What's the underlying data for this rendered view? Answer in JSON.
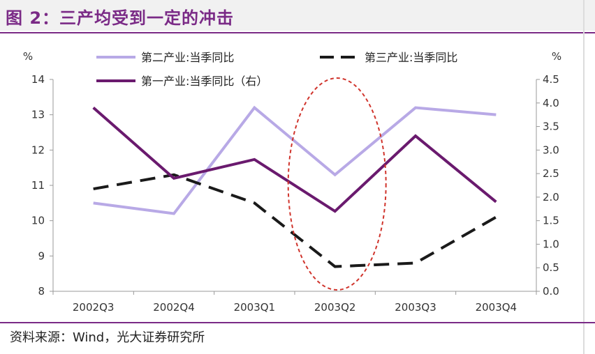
{
  "header": {
    "title": "图 2：三产均受到一定的冲击"
  },
  "footer": {
    "source": "资料来源：Wind，光大证券研究所"
  },
  "chart_data": {
    "type": "line",
    "categories": [
      "2002Q3",
      "2002Q4",
      "2003Q1",
      "2003Q2",
      "2003Q3",
      "2003Q4"
    ],
    "y_left": {
      "label": "%",
      "ylim": [
        8,
        14
      ],
      "ticks": [
        8,
        9,
        10,
        11,
        12,
        13,
        14
      ]
    },
    "y_right": {
      "label": "%",
      "ylim": [
        0,
        4.5
      ],
      "ticks": [
        "0.0",
        "0.5",
        "1.0",
        "1.5",
        "2.0",
        "2.5",
        "3.0",
        "3.5",
        "4.0",
        "4.5"
      ]
    },
    "grid": false,
    "legend": "top",
    "series": [
      {
        "name": "第二产业:当季同比",
        "axis": "left",
        "color": "#b8a9e6",
        "style": "solid",
        "values": [
          10.5,
          10.2,
          13.2,
          11.3,
          13.2,
          13.0
        ]
      },
      {
        "name": "第三产业:当季同比",
        "axis": "left",
        "color": "#1a1a1a",
        "style": "dashed",
        "values": [
          10.9,
          11.3,
          10.5,
          8.7,
          8.8,
          10.1
        ]
      },
      {
        "name": "第一产业:当季同比（右）",
        "axis": "right",
        "color": "#6a1a6e",
        "style": "solid",
        "values": [
          3.9,
          2.4,
          2.8,
          1.7,
          3.3,
          1.9
        ]
      }
    ],
    "annotation": {
      "type": "ellipse",
      "category": "2003Q2",
      "color": "#d0342c"
    }
  }
}
